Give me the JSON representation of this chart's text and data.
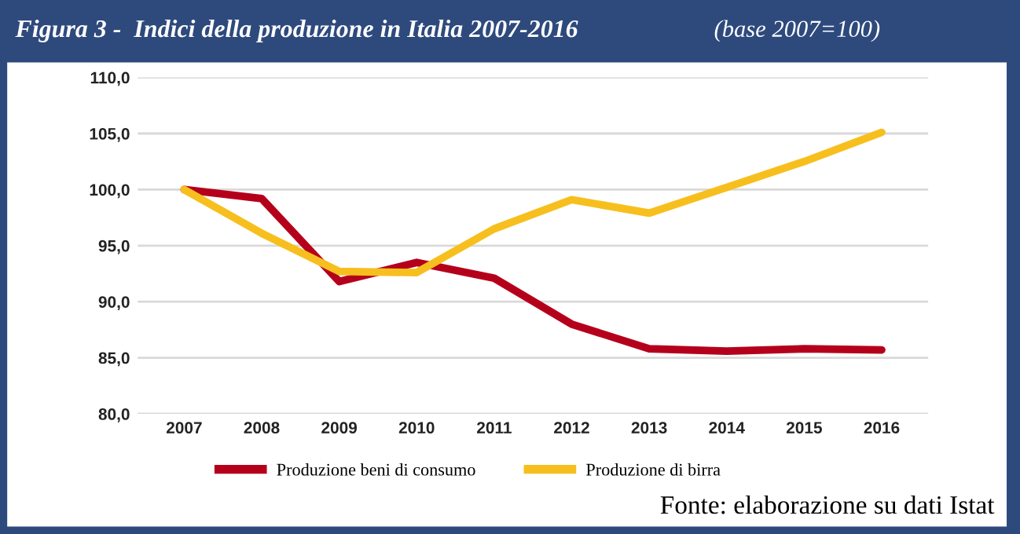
{
  "chart_data": {
    "type": "line",
    "title": "Figura 3 -  Indici della produzione in Italia 2007-2016",
    "subtitle": "(base 2007=100)",
    "categories": [
      "2007",
      "2008",
      "2009",
      "2010",
      "2011",
      "2012",
      "2013",
      "2014",
      "2015",
      "2016"
    ],
    "series": [
      {
        "name": "Produzione beni di consumo",
        "color": "#b5001b",
        "values": [
          100.0,
          99.2,
          91.8,
          93.5,
          92.1,
          88.0,
          85.8,
          85.6,
          85.8,
          85.7
        ]
      },
      {
        "name": "Produzione di birra",
        "color": "#f7bf1e",
        "values": [
          100.0,
          96.1,
          92.7,
          92.6,
          96.5,
          99.1,
          97.9,
          100.2,
          102.5,
          105.1
        ]
      }
    ],
    "ylim": [
      80,
      110
    ],
    "yticks": [
      {
        "value": 80,
        "label": "80,0"
      },
      {
        "value": 85,
        "label": "85,0"
      },
      {
        "value": 90,
        "label": "90,0"
      },
      {
        "value": 95,
        "label": "95,0"
      },
      {
        "value": 100,
        "label": "100,0"
      },
      {
        "value": 105,
        "label": "105,0"
      },
      {
        "value": 110,
        "label": "110,0"
      }
    ],
    "grid": "y",
    "legend": "bottom",
    "marker": "none",
    "line_style": "solid",
    "annotations": [
      "Fonte: elaborazione su dati Istat"
    ]
  }
}
